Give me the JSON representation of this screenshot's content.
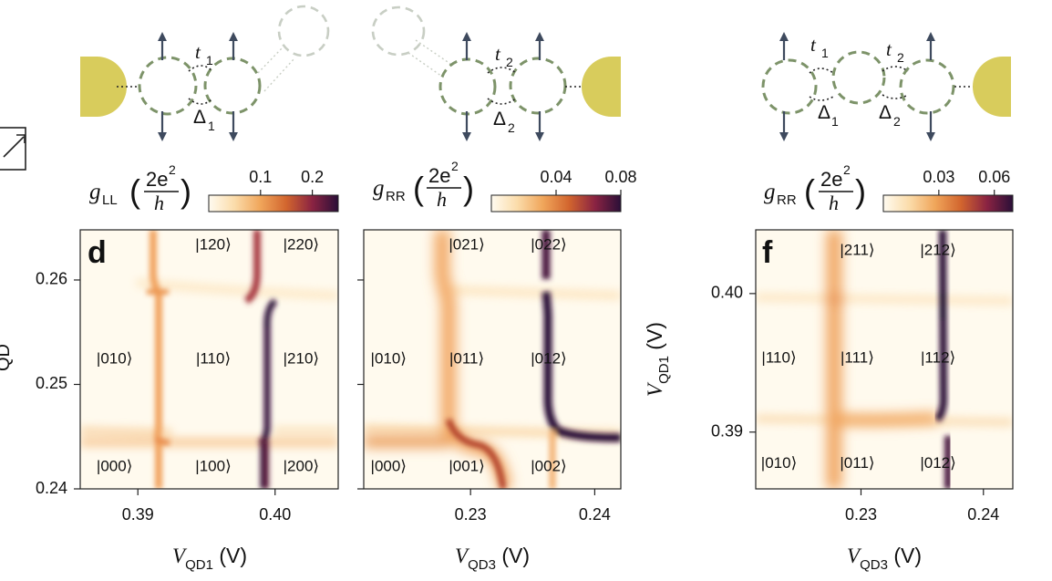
{
  "chart_data": [
    {
      "type": "heatmap",
      "panel_letter": "d",
      "quantity": {
        "symbol": "g",
        "subscript": "LL",
        "unit_num": "2e",
        "unit_sup": "2",
        "unit_den": "h"
      },
      "colorbar": {
        "ticks": [
          0.1,
          0.2
        ],
        "tick_labels": [
          "0.1",
          "0.2"
        ],
        "range": [
          0,
          0.25
        ]
      },
      "xlabel": {
        "main": "V",
        "sub": "QD1",
        "unit": "(V)"
      },
      "xticks": [
        0.39,
        0.4
      ],
      "xtick_labels": [
        "0.39",
        "0.40"
      ],
      "xlim": [
        0.3858,
        0.4046
      ],
      "ylabel": "",
      "yticks": [
        0.24,
        0.25,
        0.26
      ],
      "ytick_labels": [
        "0.24",
        "0.25",
        "0.26"
      ],
      "ylim": [
        0.24,
        0.2648
      ],
      "state_labels": [
        {
          "text": "|120⟩",
          "x": 0.3955,
          "y": 0.2633
        },
        {
          "text": "|220⟩",
          "x": 0.4019,
          "y": 0.2633
        },
        {
          "text": "|010⟩",
          "x": 0.3883,
          "y": 0.2524
        },
        {
          "text": "|110⟩",
          "x": 0.3955,
          "y": 0.2524
        },
        {
          "text": "|210⟩",
          "x": 0.4019,
          "y": 0.2524
        },
        {
          "text": "|000⟩",
          "x": 0.3883,
          "y": 0.2421
        },
        {
          "text": "|100⟩",
          "x": 0.3955,
          "y": 0.2421
        },
        {
          "text": "|200⟩",
          "x": 0.4019,
          "y": 0.2421
        }
      ],
      "diagram": {
        "t_label": "t",
        "t_sub": "1",
        "d_label": "Δ",
        "d_sub": "1"
      }
    },
    {
      "type": "heatmap",
      "quantity": {
        "symbol": "g",
        "subscript": "RR",
        "unit_num": "2e",
        "unit_sup": "2",
        "unit_den": "h"
      },
      "colorbar": {
        "ticks": [
          0.04,
          0.08
        ],
        "tick_labels": [
          "0.04",
          "0.08"
        ],
        "range": [
          0,
          0.08
        ]
      },
      "xlabel": {
        "main": "V",
        "sub": "QD3",
        "unit": "(V)"
      },
      "xticks": [
        0.23,
        0.24
      ],
      "xtick_labels": [
        "0.23",
        "0.24"
      ],
      "xlim": [
        0.2214,
        0.2421
      ],
      "yticks": [
        0.24,
        0.25,
        0.26
      ],
      "ytick_labels": [],
      "ylim": [
        0.24,
        0.2648
      ],
      "state_labels": [
        {
          "text": "|021⟩",
          "x": 0.2297,
          "y": 0.2633
        },
        {
          "text": "|022⟩",
          "x": 0.2363,
          "y": 0.2633
        },
        {
          "text": "|010⟩",
          "x": 0.2234,
          "y": 0.2524
        },
        {
          "text": "|011⟩",
          "x": 0.2297,
          "y": 0.2524
        },
        {
          "text": "|012⟩",
          "x": 0.2363,
          "y": 0.2524
        },
        {
          "text": "|000⟩",
          "x": 0.2234,
          "y": 0.2421
        },
        {
          "text": "|001⟩",
          "x": 0.2297,
          "y": 0.2421
        },
        {
          "text": "|002⟩",
          "x": 0.2363,
          "y": 0.2421
        }
      ],
      "diagram": {
        "t_label": "t",
        "t_sub": "2",
        "d_label": "Δ",
        "d_sub": "2"
      }
    },
    {
      "type": "heatmap",
      "panel_letter": "f",
      "quantity": {
        "symbol": "g",
        "subscript": "RR",
        "unit_num": "2e",
        "unit_sup": "2",
        "unit_den": "h"
      },
      "colorbar": {
        "ticks": [
          0.03,
          0.06
        ],
        "tick_labels": [
          "0.03",
          "0.06"
        ],
        "range": [
          0,
          0.07
        ]
      },
      "xlabel": {
        "main": "V",
        "sub": "QD3",
        "unit": "(V)"
      },
      "xticks": [
        0.23,
        0.24
      ],
      "xtick_labels": [
        "0.23",
        "0.24"
      ],
      "xlim": [
        0.2214,
        0.2424
      ],
      "ylabel": {
        "main": "V",
        "sub": "QD1",
        "unit": "(V)"
      },
      "yticks": [
        0.39,
        0.4
      ],
      "ytick_labels": [
        "0.39",
        "0.40"
      ],
      "ylim": [
        0.3859,
        0.4046
      ],
      "state_labels": [
        {
          "text": "|211⟩",
          "x": 0.2297,
          "y": 0.4031
        },
        {
          "text": "|212⟩",
          "x": 0.2363,
          "y": 0.4031
        },
        {
          "text": "|110⟩",
          "x": 0.2233,
          "y": 0.3953
        },
        {
          "text": "|111⟩",
          "x": 0.2297,
          "y": 0.3953
        },
        {
          "text": "|112⟩",
          "x": 0.2363,
          "y": 0.3953
        },
        {
          "text": "|010⟩",
          "x": 0.2233,
          "y": 0.3877
        },
        {
          "text": "|011⟩",
          "x": 0.2297,
          "y": 0.3877
        },
        {
          "text": "|012⟩",
          "x": 0.2363,
          "y": 0.3877
        }
      ],
      "diagram": {
        "t_label": "t",
        "t_sub": "1",
        "t2_label": "t",
        "t2_sub": "2",
        "d_label": "Δ",
        "d_sub": "1",
        "d2_label": "Δ",
        "d2_sub": "2"
      }
    }
  ],
  "partial": {
    "y_axis_fragment": "QD"
  },
  "colors": {
    "lead": "#d8cc5c",
    "dot": "#7d9369",
    "dot_faded": "#c8cec4",
    "arrow": "#3e4a5e",
    "frame": "#222222"
  }
}
